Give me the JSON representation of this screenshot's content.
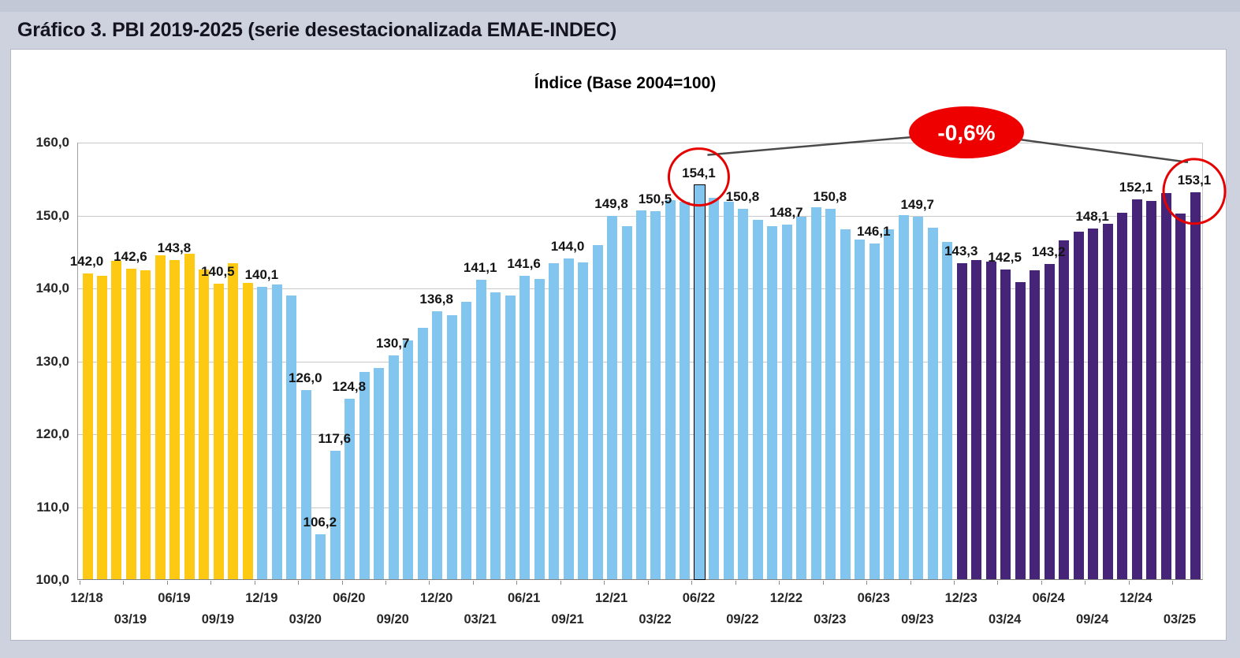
{
  "page": {
    "title": "Gráfico 3. PBI 2019-2025 (serie desestacionalizada EMAE-INDEC)"
  },
  "chart_data": {
    "type": "bar",
    "title": "Índice (Base 2004=100)",
    "ylabel": "",
    "xlabel": "",
    "ylim": [
      100,
      160
    ],
    "grid": true,
    "ytick_labels": [
      "160,0",
      "150,0",
      "140,0",
      "130,0",
      "120,0",
      "110,0",
      "100,0"
    ],
    "xtick_labels": [
      "12/18",
      "03/19",
      "06/19",
      "09/19",
      "12/19",
      "03/20",
      "06/20",
      "09/20",
      "12/20",
      "03/21",
      "06/21",
      "09/21",
      "12/21",
      "03/22",
      "06/22",
      "09/22",
      "12/22",
      "03/23",
      "06/23",
      "09/23",
      "12/23",
      "03/24",
      "06/24",
      "09/24",
      "12/24",
      "03/25"
    ],
    "colors": {
      "period_2019": "#fdc913",
      "period_2020_2023": "#82c6ef",
      "period_2024_2025": "#462579",
      "annotation_red": "#e60000",
      "highlight_outline": "#000000",
      "connector_gray": "#4a4a4a"
    },
    "annotation": {
      "badge": "-0,6%",
      "peak_label": "154,1",
      "latest_label": "153,1"
    },
    "bars": [
      {
        "month": "12/18",
        "value": 142.0,
        "label": "142,0",
        "c": "y"
      },
      {
        "month": "01/19",
        "value": 141.6,
        "c": "y"
      },
      {
        "month": "02/19",
        "value": 143.7,
        "c": "y"
      },
      {
        "month": "03/19",
        "value": 142.6,
        "label": "142,6",
        "c": "y"
      },
      {
        "month": "04/19",
        "value": 142.4,
        "c": "y"
      },
      {
        "month": "05/19",
        "value": 144.4,
        "c": "y"
      },
      {
        "month": "06/19",
        "value": 143.8,
        "label": "143,8",
        "c": "y"
      },
      {
        "month": "07/19",
        "value": 144.7,
        "c": "y"
      },
      {
        "month": "08/19",
        "value": 142.5,
        "c": "y"
      },
      {
        "month": "09/19",
        "value": 140.5,
        "label": "140,5",
        "c": "y"
      },
      {
        "month": "10/19",
        "value": 143.3,
        "c": "y"
      },
      {
        "month": "11/19",
        "value": 140.7,
        "c": "y"
      },
      {
        "month": "12/19",
        "value": 140.1,
        "label": "140,1",
        "c": "b"
      },
      {
        "month": "01/20",
        "value": 140.4,
        "c": "b"
      },
      {
        "month": "02/20",
        "value": 138.9,
        "c": "b"
      },
      {
        "month": "03/20",
        "value": 126.0,
        "label": "126,0",
        "c": "b"
      },
      {
        "month": "04/20",
        "value": 106.2,
        "label": "106,2",
        "c": "b"
      },
      {
        "month": "05/20",
        "value": 117.6,
        "label": "117,6",
        "c": "b"
      },
      {
        "month": "06/20",
        "value": 124.8,
        "label": "124,8",
        "c": "b"
      },
      {
        "month": "07/20",
        "value": 128.4,
        "c": "b"
      },
      {
        "month": "08/20",
        "value": 129.0,
        "c": "b"
      },
      {
        "month": "09/20",
        "value": 130.7,
        "label": "130,7",
        "c": "b"
      },
      {
        "month": "10/20",
        "value": 132.8,
        "c": "b"
      },
      {
        "month": "11/20",
        "value": 134.5,
        "c": "b"
      },
      {
        "month": "12/20",
        "value": 136.8,
        "label": "136,8",
        "c": "b"
      },
      {
        "month": "01/21",
        "value": 136.2,
        "c": "b"
      },
      {
        "month": "02/21",
        "value": 138.1,
        "c": "b"
      },
      {
        "month": "03/21",
        "value": 141.1,
        "label": "141,1",
        "c": "b"
      },
      {
        "month": "04/21",
        "value": 139.4,
        "c": "b"
      },
      {
        "month": "05/21",
        "value": 138.9,
        "c": "b"
      },
      {
        "month": "06/21",
        "value": 141.6,
        "label": "141,6",
        "c": "b"
      },
      {
        "month": "07/21",
        "value": 141.2,
        "c": "b"
      },
      {
        "month": "08/21",
        "value": 143.3,
        "c": "b"
      },
      {
        "month": "09/21",
        "value": 144.0,
        "label": "144,0",
        "c": "b"
      },
      {
        "month": "10/21",
        "value": 143.5,
        "c": "b"
      },
      {
        "month": "11/21",
        "value": 145.8,
        "c": "b"
      },
      {
        "month": "12/21",
        "value": 149.8,
        "label": "149,8",
        "c": "b"
      },
      {
        "month": "01/22",
        "value": 148.4,
        "c": "b"
      },
      {
        "month": "02/22",
        "value": 150.6,
        "c": "b"
      },
      {
        "month": "03/22",
        "value": 150.5,
        "label": "150,5",
        "c": "b"
      },
      {
        "month": "04/22",
        "value": 152.0,
        "c": "b"
      },
      {
        "month": "05/22",
        "value": 151.8,
        "c": "b"
      },
      {
        "month": "06/22",
        "value": 154.1,
        "label": "154,1",
        "c": "b",
        "highlight": true,
        "circled": true
      },
      {
        "month": "07/22",
        "value": 152.3,
        "c": "b"
      },
      {
        "month": "08/22",
        "value": 151.8,
        "c": "b"
      },
      {
        "month": "09/22",
        "value": 150.8,
        "label": "150,8",
        "c": "b"
      },
      {
        "month": "10/22",
        "value": 149.3,
        "c": "b"
      },
      {
        "month": "11/22",
        "value": 148.4,
        "c": "b"
      },
      {
        "month": "12/22",
        "value": 148.7,
        "label": "148,7",
        "c": "b"
      },
      {
        "month": "01/23",
        "value": 149.7,
        "c": "b"
      },
      {
        "month": "02/23",
        "value": 151.0,
        "c": "b"
      },
      {
        "month": "03/23",
        "value": 150.8,
        "label": "150,8",
        "c": "b"
      },
      {
        "month": "04/23",
        "value": 148.0,
        "c": "b"
      },
      {
        "month": "05/23",
        "value": 146.6,
        "c": "b"
      },
      {
        "month": "06/23",
        "value": 146.1,
        "label": "146,1",
        "c": "b"
      },
      {
        "month": "07/23",
        "value": 148.0,
        "c": "b"
      },
      {
        "month": "08/23",
        "value": 149.9,
        "c": "b"
      },
      {
        "month": "09/23",
        "value": 149.7,
        "label": "149,7",
        "c": "b"
      },
      {
        "month": "10/23",
        "value": 148.2,
        "c": "b"
      },
      {
        "month": "11/23",
        "value": 146.3,
        "c": "b"
      },
      {
        "month": "12/23",
        "value": 143.3,
        "label": "143,3",
        "c": "p"
      },
      {
        "month": "01/24",
        "value": 143.8,
        "c": "p"
      },
      {
        "month": "02/24",
        "value": 143.6,
        "c": "p"
      },
      {
        "month": "03/24",
        "value": 142.5,
        "label": "142,5",
        "c": "p"
      },
      {
        "month": "04/24",
        "value": 140.8,
        "c": "p"
      },
      {
        "month": "05/24",
        "value": 142.4,
        "c": "p"
      },
      {
        "month": "06/24",
        "value": 143.2,
        "label": "143,2",
        "c": "p"
      },
      {
        "month": "07/24",
        "value": 146.5,
        "c": "p"
      },
      {
        "month": "08/24",
        "value": 147.7,
        "c": "p"
      },
      {
        "month": "09/24",
        "value": 148.1,
        "label": "148,1",
        "c": "p"
      },
      {
        "month": "10/24",
        "value": 148.8,
        "c": "p"
      },
      {
        "month": "11/24",
        "value": 150.3,
        "c": "p"
      },
      {
        "month": "12/24",
        "value": 152.1,
        "label": "152,1",
        "c": "p"
      },
      {
        "month": "01/25",
        "value": 151.9,
        "c": "p"
      },
      {
        "month": "02/25",
        "value": 153.0,
        "c": "p"
      },
      {
        "month": "03/25",
        "value": 150.2,
        "c": "p"
      },
      {
        "month": "04/25",
        "value": 153.1,
        "label": "153,1",
        "c": "p",
        "circled": true
      }
    ]
  }
}
